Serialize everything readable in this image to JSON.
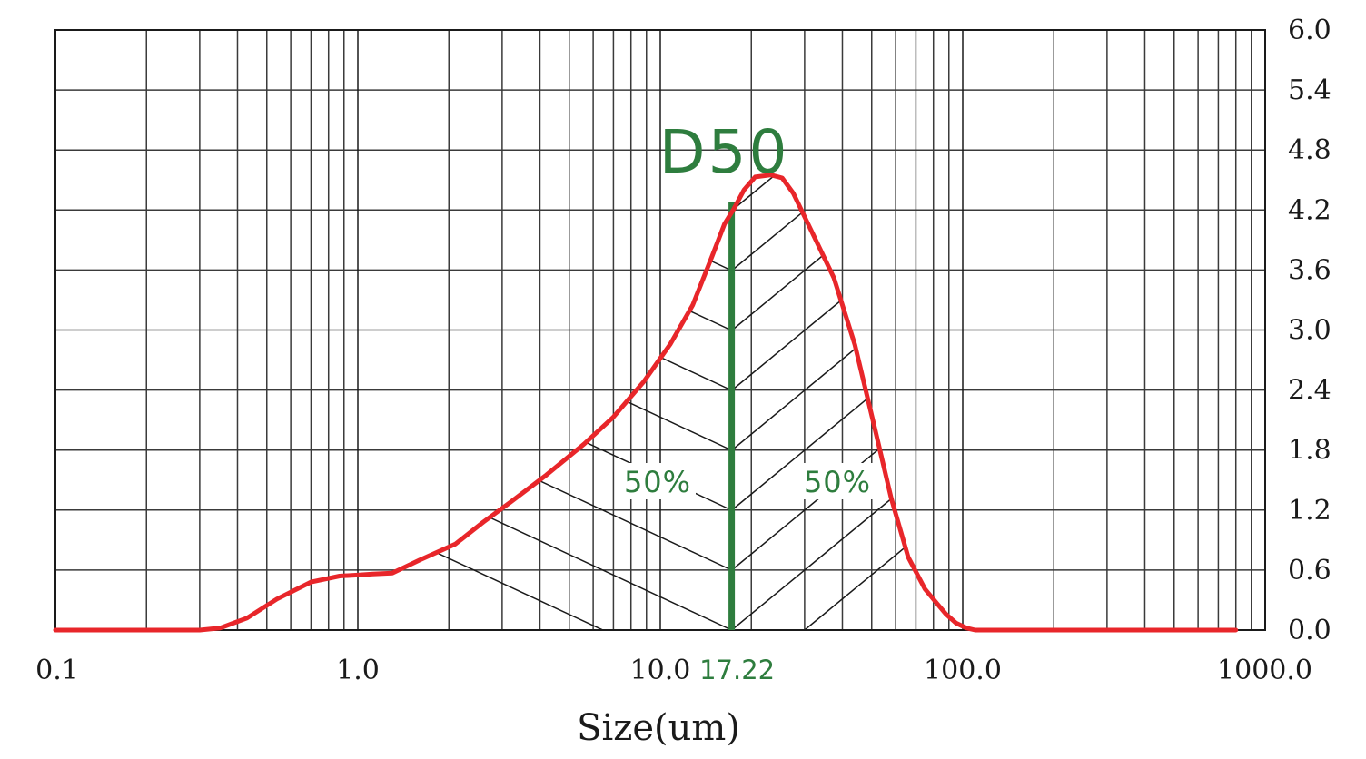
{
  "chart_data": {
    "type": "area",
    "xlabel": "Size(um)",
    "ylabel": "",
    "x_scale": "log",
    "xlim": [
      0.1,
      1000.0
    ],
    "ylim": [
      0.0,
      6.0
    ],
    "grid": true,
    "x_tick_labels": [
      {
        "value": 0.1,
        "label": "0.1"
      },
      {
        "value": 1.0,
        "label": "1.0"
      },
      {
        "value": 10.0,
        "label": "10.0"
      },
      {
        "value": 100.0,
        "label": "100.0"
      },
      {
        "value": 1000.0,
        "label": "1000.0"
      }
    ],
    "y_ticks": [
      {
        "value": 0.0,
        "label": "0.0"
      },
      {
        "value": 0.6,
        "label": "0.6"
      },
      {
        "value": 1.2,
        "label": "1.2"
      },
      {
        "value": 1.8,
        "label": "1.8"
      },
      {
        "value": 2.4,
        "label": "2.4"
      },
      {
        "value": 3.0,
        "label": "3.0"
      },
      {
        "value": 3.6,
        "label": "3.6"
      },
      {
        "value": 4.2,
        "label": "4.2"
      },
      {
        "value": 4.8,
        "label": "4.8"
      },
      {
        "value": 5.4,
        "label": "5.4"
      },
      {
        "value": 6.0,
        "label": "6.0"
      }
    ],
    "series": [
      {
        "color": "#e8262a",
        "x": [
          0.1,
          0.2,
          0.3,
          0.35,
          0.43,
          0.54,
          0.7,
          0.87,
          1.0,
          1.12,
          1.3,
          1.6,
          2.1,
          2.6,
          3.2,
          4.2,
          5.6,
          7.0,
          8.8,
          10.8,
          12.8,
          14.8,
          16.3,
          17.5,
          18.9,
          20.6,
          23.2,
          25.3,
          27.5,
          31.5,
          37.5,
          44.0,
          51.0,
          58.0,
          66.0,
          75.0,
          82.0,
          88.0,
          95.0,
          103.0,
          110.0,
          200.0,
          400.0,
          600.0,
          800.0
        ],
        "y": [
          0.0,
          0.0,
          0.0,
          0.02,
          0.12,
          0.31,
          0.48,
          0.54,
          0.55,
          0.56,
          0.57,
          0.7,
          0.86,
          1.08,
          1.28,
          1.55,
          1.86,
          2.13,
          2.48,
          2.86,
          3.25,
          3.73,
          4.06,
          4.21,
          4.4,
          4.53,
          4.55,
          4.52,
          4.37,
          4.0,
          3.52,
          2.85,
          2.04,
          1.32,
          0.73,
          0.41,
          0.27,
          0.16,
          0.07,
          0.02,
          0.0,
          0.0,
          0.0,
          0.0,
          0.0
        ]
      }
    ],
    "annotations": {
      "d50_title": "D50",
      "d50_value": 17.22,
      "d50_label": "17.22",
      "left_label": "50%",
      "right_label": "50%"
    }
  }
}
